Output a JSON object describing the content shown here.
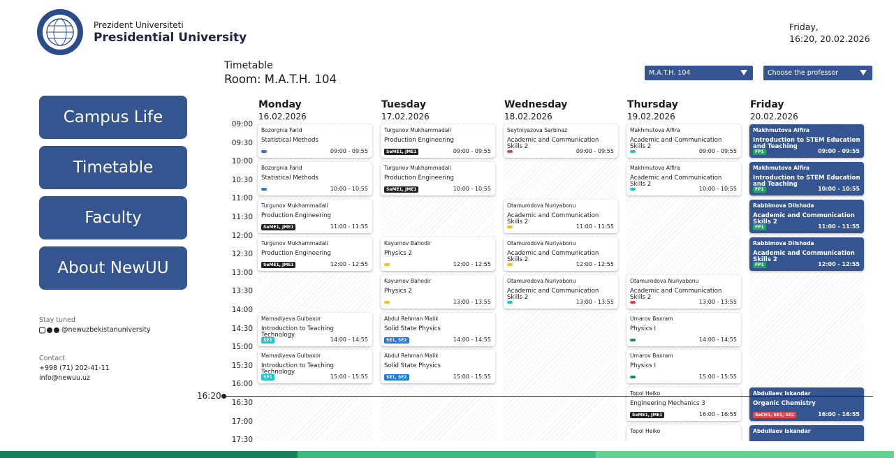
{
  "header": {
    "subtitle": "Prezident Universiteti",
    "title": "Presidential University",
    "day": "Friday,",
    "datetime": "16:20, 20.02.2026"
  },
  "nav": [
    "Campus Life",
    "Timetable",
    "Faculty",
    "About NewUU"
  ],
  "social": {
    "label": "Stay tuned",
    "handle": "@newuzbekistanuniversity"
  },
  "contact": {
    "label": "Contact",
    "phone": "+998 (71) 202-41-11",
    "email": "info@newuu.uz"
  },
  "timetable": {
    "label": "Timetable",
    "room": "Room: M.A.T.H. 104",
    "room_select": "M.A.T.H. 104",
    "professor_select": "Choose the professor",
    "now": "16:20",
    "times": [
      "09:00",
      "09:30",
      "10:00",
      "10:30",
      "11:00",
      "11:30",
      "12:00",
      "12:30",
      "13:00",
      "13:30",
      "14:00",
      "14:30",
      "15:00",
      "15:30",
      "16:00",
      "16:30",
      "17:00",
      "17:30"
    ],
    "days": [
      {
        "name": "Monday",
        "date": "16.02.2026",
        "active": false,
        "slots": [
          {
            "teacher": "Bozorgnia Farid",
            "course": "Statistical Methods",
            "time": "09:00 - 09:55",
            "dot": "#1f7ae0"
          },
          {
            "teacher": "Bozorgnia Farid",
            "course": "Statistical Methods",
            "time": "10:00 - 10:55",
            "dot": "#1f7ae0"
          },
          {
            "teacher": "Turgunov Mukhammadali",
            "course": "Production Engineering",
            "time": "11:00 - 11:55",
            "tag": "SeME1, JME1",
            "tag_color": "#222222"
          },
          {
            "teacher": "Turgunov Mukhammadali",
            "course": "Production Engineering",
            "time": "12:00 - 12:55",
            "tag": "SeME1, JME1",
            "tag_color": "#222222"
          },
          null,
          {
            "teacher": "Mamadiyeva Gulbaxor",
            "course": "Introduction to Teaching Technology",
            "time": "14:00 - 14:55",
            "tag": "SP1",
            "tag_color": "#1cc4d4"
          },
          {
            "teacher": "Mamadiyeva Gulbaxor",
            "course": "Introduction to Teaching Technology",
            "time": "15:00 - 15:55",
            "tag": "SP1",
            "tag_color": "#1cc4d4"
          },
          null,
          null
        ]
      },
      {
        "name": "Tuesday",
        "date": "17.02.2026",
        "active": false,
        "slots": [
          {
            "teacher": "Turgunov Mukhammadali",
            "course": "Production Engineering",
            "time": "09:00 - 09:55",
            "tag": "SeME1, JME1",
            "tag_color": "#222222"
          },
          {
            "teacher": "Turgunov Mukhammadali",
            "course": "Production Engineering",
            "time": "10:00 - 10:55",
            "tag": "SeME1, JME1",
            "tag_color": "#222222"
          },
          null,
          {
            "teacher": "Kayumov Bahodir",
            "course": "Physics 2",
            "time": "12:00 - 12:55",
            "dot": "#f2c21b"
          },
          {
            "teacher": "Kayumov Bahodir",
            "course": "Physics 2",
            "time": "13:00 - 13:55",
            "dot": "#f2c21b"
          },
          {
            "teacher": "Abdul Rehman Malik",
            "course": "Solid State Physics",
            "time": "14:00 - 14:55",
            "tag": "SE1, SE2",
            "tag_color": "#1f7ae0"
          },
          {
            "teacher": "Abdul Rehman Malik",
            "course": "Solid State Physics",
            "time": "15:00 - 15:55",
            "tag": "SE1, SE2",
            "tag_color": "#1f7ae0"
          },
          null,
          null
        ]
      },
      {
        "name": "Wednesday",
        "date": "18.02.2026",
        "active": false,
        "slots": [
          {
            "teacher": "Seytniyazova Sarbinaz",
            "course": "Academic and Communication Skills 2",
            "time": "09:00 - 09:55",
            "dot": "#e0474c"
          },
          null,
          {
            "teacher": "Otamurodova Nuriyabonu",
            "course": "Academic and Communication Skills 2",
            "time": "11:00 - 11:55",
            "dot": "#f2c21b"
          },
          {
            "teacher": "Otamurodova Nuriyabonu",
            "course": "Academic and Communication Skills 2",
            "time": "12:00 - 12:55",
            "dot": "#f2c21b"
          },
          {
            "teacher": "Otamurodova Nuriyabonu",
            "course": "Academic and Communication Skills 2",
            "time": "13:00 - 13:55",
            "dot": "#1cc4d4"
          },
          null,
          null,
          null,
          null
        ]
      },
      {
        "name": "Thursday",
        "date": "19.02.2026",
        "active": false,
        "slots": [
          {
            "teacher": "Makhmutova Alfira",
            "course": "Academic and Communication Skills 2",
            "time": "09:00 - 09:55",
            "dot": "#1cc4d4"
          },
          {
            "teacher": "Makhmutova Alfira",
            "course": "Academic and Communication Skills 2",
            "time": "10:00 - 10:55",
            "dot": "#1cc4d4"
          },
          null,
          null,
          {
            "teacher": "Otamurodova Nuriyabonu",
            "course": "Academic and Communication Skills 2",
            "time": "13:00 - 13:55",
            "dot": "#e0474c"
          },
          {
            "teacher": "Umarov Baxram",
            "course": "Physics I",
            "time": "14:00 - 14:55",
            "dot": "#1a8f5a"
          },
          {
            "teacher": "Umarov Baxram",
            "course": "Physics I",
            "time": "15:00 - 15:55",
            "dot": "#1a8f5a"
          },
          {
            "teacher": "Topol Heiko",
            "course": "Engineering Mechanics 3",
            "time": "16:00 - 16:55",
            "tag": "SeME1, JME1",
            "tag_color": "#222222"
          },
          {
            "teacher": "Topol Heiko"
          }
        ]
      },
      {
        "name": "Friday",
        "date": "20.02.2026",
        "active": true,
        "slots": [
          {
            "teacher": "Makhmutova Alfira",
            "course": "Introduction to STEM Education and Teaching",
            "time": "09:00 - 09:55",
            "tag": "FP1",
            "tag_color": "#1aa85c"
          },
          {
            "teacher": "Makhmutova Alfira",
            "course": "Introduction to STEM Education and Teaching",
            "time": "10:00 - 10:55",
            "tag": "FP1",
            "tag_color": "#1aa85c"
          },
          {
            "teacher": "Rabbimova Dilshoda",
            "course": "Academic and Communication Skills 2",
            "time": "11:00 - 11:55",
            "tag": "FP1",
            "tag_color": "#1aa85c"
          },
          {
            "teacher": "Rabbimova Dilshoda",
            "course": "Academic and Communication Skills 2",
            "time": "12:00 - 12:55",
            "tag": "FP1",
            "tag_color": "#1aa85c"
          },
          null,
          null,
          null,
          {
            "teacher": "Abdullaev Iskandar",
            "course": "Organic Chemistry",
            "time": "16:00 - 16:55",
            "tag": "SeCH1, SE1, SE2",
            "tag_color": "#e0474c"
          },
          {
            "teacher": "Abdullaev Iskandar"
          }
        ]
      }
    ]
  }
}
